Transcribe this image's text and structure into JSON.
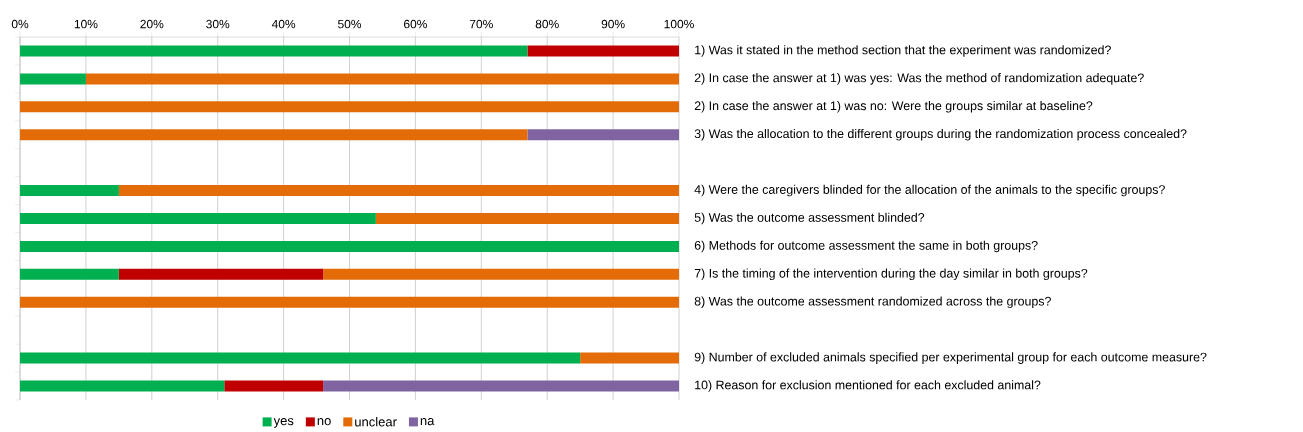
{
  "chart_data": {
    "type": "bar",
    "orientation": "horizontal",
    "stacked": true,
    "categories": [
      "1) Was it stated in the method section that the experiment was randomized?",
      "2) In case the answer at 1) was yes: Was the method of randomization adequate?",
      "2) In case the answer at 1) was no: Were the groups similar at baseline?",
      "3) Was the allocation to the different groups during the randomization process concealed?",
      null,
      "4) Were the caregivers blinded for the allocation of the animals to the specific groups?",
      "5) Was the outcome assessment blinded?",
      "6) Methods for outcome assessment the same in both groups?",
      "7) Is the timing of the intervention during the day similar in both groups?",
      "8) Was the outcome assessment randomized across the groups?",
      null,
      "9) Number of excluded animals specified per experimental group for each outcome measure?",
      "10) Reason for exclusion mentioned for each excluded animal?"
    ],
    "series": [
      {
        "name": "yes",
        "color": "#00b050",
        "values": [
          77,
          10,
          0,
          0,
          null,
          15,
          54,
          100,
          15,
          0,
          null,
          85,
          31
        ]
      },
      {
        "name": "no",
        "color": "#c00000",
        "values": [
          23,
          0,
          0,
          0,
          null,
          0,
          0,
          0,
          31,
          0,
          null,
          0,
          15
        ]
      },
      {
        "name": "unclear",
        "color": "#e36c09",
        "values": [
          0,
          90,
          100,
          77,
          null,
          85,
          46,
          0,
          54,
          100,
          null,
          15,
          0
        ]
      },
      {
        "name": "na",
        "color": "#8064a2",
        "values": [
          0,
          0,
          0,
          23,
          null,
          0,
          0,
          0,
          0,
          0,
          null,
          0,
          54
        ]
      }
    ],
    "xlim": [
      0,
      100
    ],
    "xticks": [
      {
        "value": 0,
        "label": "0%"
      },
      {
        "value": 10,
        "label": "10%"
      },
      {
        "value": 20,
        "label": "20%"
      },
      {
        "value": 30,
        "label": "30%"
      },
      {
        "value": 40,
        "label": "40%"
      },
      {
        "value": 50,
        "label": "50%"
      },
      {
        "value": 60,
        "label": "60%"
      },
      {
        "value": 70,
        "label": "70%"
      },
      {
        "value": 80,
        "label": "80%"
      },
      {
        "value": 90,
        "label": "90%"
      },
      {
        "value": 100,
        "label": "100%"
      }
    ],
    "grid": "x",
    "legend": "bottom"
  }
}
